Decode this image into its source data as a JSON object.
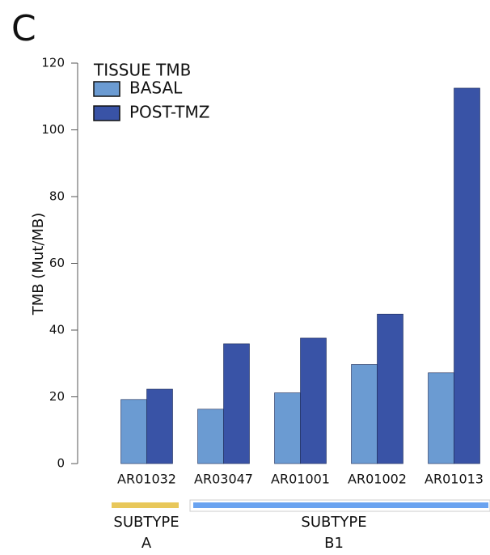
{
  "panel_label": "C",
  "chart_data": {
    "type": "bar",
    "y_label": "TMB (Mut/MB)",
    "legend_title": "TISSUE TMB",
    "categories": [
      "AR01032",
      "AR03047",
      "AR01001",
      "AR01002",
      "AR01013"
    ],
    "series": [
      {
        "name": "BASAL",
        "color": "#6b9bd2",
        "values": [
          19.2,
          16.3,
          21.2,
          29.7,
          27.2
        ]
      },
      {
        "name": "POST-TMZ",
        "color": "#3953a6",
        "values": [
          22.3,
          35.9,
          37.6,
          44.8,
          112.5
        ]
      }
    ],
    "ylim": [
      0,
      120
    ],
    "yticks": [
      0,
      20,
      40,
      60,
      80,
      100,
      120
    ],
    "grid": false,
    "subtypes": [
      {
        "lines": [
          "SUBTYPE",
          "A"
        ],
        "color": "#e8c75a"
      },
      {
        "lines": [
          "SUBTYPE",
          "B1"
        ],
        "color": "#6aa3f0"
      }
    ]
  }
}
